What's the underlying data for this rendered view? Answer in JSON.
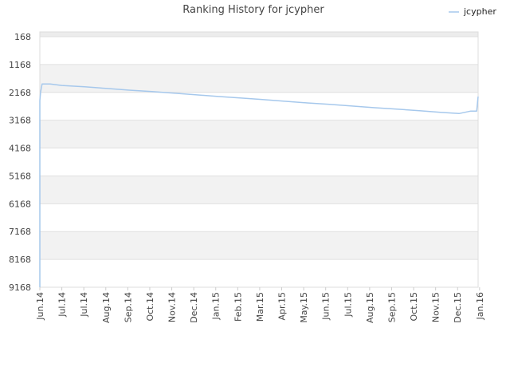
{
  "chart_data": {
    "type": "line",
    "title": "Ranking History for jcypher",
    "xlabel": "",
    "ylabel": "",
    "y_inverted": true,
    "ylim": [
      168,
      9168
    ],
    "y_ticks": [
      "168",
      "1168",
      "2168",
      "3168",
      "4168",
      "5168",
      "6168",
      "7168",
      "8168",
      "9168"
    ],
    "x_range": [
      "2014-06-01",
      "2016-01-20"
    ],
    "x_ticks": [
      {
        "label": "Jun.14",
        "date": "2014-06-01"
      },
      {
        "label": "Jul.14",
        "date": "2014-07-01"
      },
      {
        "label": "Jul.14",
        "date": "2014-07-31"
      },
      {
        "label": "Aug.14",
        "date": "2014-08-30"
      },
      {
        "label": "Sep.14",
        "date": "2014-09-29"
      },
      {
        "label": "Oct.14",
        "date": "2014-10-29"
      },
      {
        "label": "Nov.14",
        "date": "2014-11-28"
      },
      {
        "label": "Dec.14",
        "date": "2014-12-28"
      },
      {
        "label": "Jan.15",
        "date": "2015-01-27"
      },
      {
        "label": "Feb.15",
        "date": "2015-02-26"
      },
      {
        "label": "Mar.15",
        "date": "2015-03-28"
      },
      {
        "label": "Apr.15",
        "date": "2015-04-27"
      },
      {
        "label": "May.15",
        "date": "2015-05-27"
      },
      {
        "label": "Jun.15",
        "date": "2015-06-26"
      },
      {
        "label": "Jul.15",
        "date": "2015-07-26"
      },
      {
        "label": "Aug.15",
        "date": "2015-08-25"
      },
      {
        "label": "Sep.15",
        "date": "2015-09-24"
      },
      {
        "label": "Oct.15",
        "date": "2015-10-24"
      },
      {
        "label": "Nov.15",
        "date": "2015-11-23"
      },
      {
        "label": "Dec.15",
        "date": "2015-12-23"
      },
      {
        "label": "Jan.16",
        "date": "2016-01-22"
      }
    ],
    "grid": true,
    "legend_position": "top-right",
    "series": [
      {
        "name": "jcypher",
        "color": "#a6c8ec",
        "points": [
          {
            "x": "2014-06-01",
            "y": 9168
          },
          {
            "x": "2014-06-01",
            "y": 2468
          },
          {
            "x": "2014-06-02",
            "y": 2168
          },
          {
            "x": "2014-06-04",
            "y": 1868
          },
          {
            "x": "2014-06-15",
            "y": 1868
          },
          {
            "x": "2014-07-01",
            "y": 1918
          },
          {
            "x": "2014-08-01",
            "y": 1968
          },
          {
            "x": "2014-09-01",
            "y": 2028
          },
          {
            "x": "2014-10-01",
            "y": 2088
          },
          {
            "x": "2014-11-01",
            "y": 2138
          },
          {
            "x": "2014-12-01",
            "y": 2198
          },
          {
            "x": "2015-01-01",
            "y": 2258
          },
          {
            "x": "2015-02-01",
            "y": 2318
          },
          {
            "x": "2015-03-01",
            "y": 2368
          },
          {
            "x": "2015-04-01",
            "y": 2428
          },
          {
            "x": "2015-05-01",
            "y": 2488
          },
          {
            "x": "2015-06-01",
            "y": 2548
          },
          {
            "x": "2015-07-01",
            "y": 2598
          },
          {
            "x": "2015-08-01",
            "y": 2658
          },
          {
            "x": "2015-09-01",
            "y": 2718
          },
          {
            "x": "2015-10-01",
            "y": 2768
          },
          {
            "x": "2015-11-01",
            "y": 2828
          },
          {
            "x": "2015-12-01",
            "y": 2888
          },
          {
            "x": "2015-12-25",
            "y": 2928
          },
          {
            "x": "2016-01-10",
            "y": 2838
          },
          {
            "x": "2016-01-18",
            "y": 2838
          },
          {
            "x": "2016-01-20",
            "y": 2318
          }
        ]
      }
    ]
  }
}
